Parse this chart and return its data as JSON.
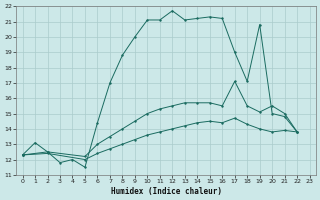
{
  "xlabel": "Humidex (Indice chaleur)",
  "bg_color": "#cce8e8",
  "grid_color": "#aacccc",
  "line_color": "#1a6b60",
  "xlim": [
    -0.5,
    23.5
  ],
  "ylim": [
    11,
    22
  ],
  "xticks": [
    0,
    1,
    2,
    3,
    4,
    5,
    6,
    7,
    8,
    9,
    10,
    11,
    12,
    13,
    14,
    15,
    16,
    17,
    18,
    19,
    20,
    21,
    22,
    23
  ],
  "yticks": [
    11,
    12,
    13,
    14,
    15,
    16,
    17,
    18,
    19,
    20,
    21,
    22
  ],
  "series1_x": [
    0,
    1,
    2,
    3,
    4,
    5,
    6,
    7,
    8,
    9,
    10,
    11,
    12,
    13,
    14,
    15,
    16,
    17,
    18,
    19,
    20,
    21,
    22
  ],
  "series1_y": [
    12.3,
    13.1,
    12.5,
    11.8,
    12.0,
    11.5,
    14.4,
    17.0,
    18.8,
    20.0,
    21.1,
    21.1,
    21.7,
    21.1,
    21.2,
    21.3,
    21.2,
    19.0,
    17.1,
    20.8,
    15.0,
    14.8,
    13.8
  ],
  "series2_x": [
    0,
    2,
    5,
    6,
    7,
    8,
    9,
    10,
    11,
    12,
    13,
    14,
    15,
    16,
    17,
    18,
    19,
    20,
    21,
    22
  ],
  "series2_y": [
    12.3,
    12.5,
    12.2,
    13.0,
    13.5,
    14.0,
    14.5,
    15.0,
    15.3,
    15.5,
    15.7,
    15.7,
    15.7,
    15.5,
    17.1,
    15.5,
    15.1,
    15.5,
    15.0,
    13.8
  ],
  "series3_x": [
    0,
    2,
    5,
    6,
    7,
    8,
    9,
    10,
    11,
    12,
    13,
    14,
    15,
    16,
    17,
    18,
    19,
    20,
    21,
    22
  ],
  "series3_y": [
    12.3,
    12.4,
    12.0,
    12.4,
    12.7,
    13.0,
    13.3,
    13.6,
    13.8,
    14.0,
    14.2,
    14.4,
    14.5,
    14.4,
    14.7,
    14.3,
    14.0,
    13.8,
    13.9,
    13.8
  ]
}
